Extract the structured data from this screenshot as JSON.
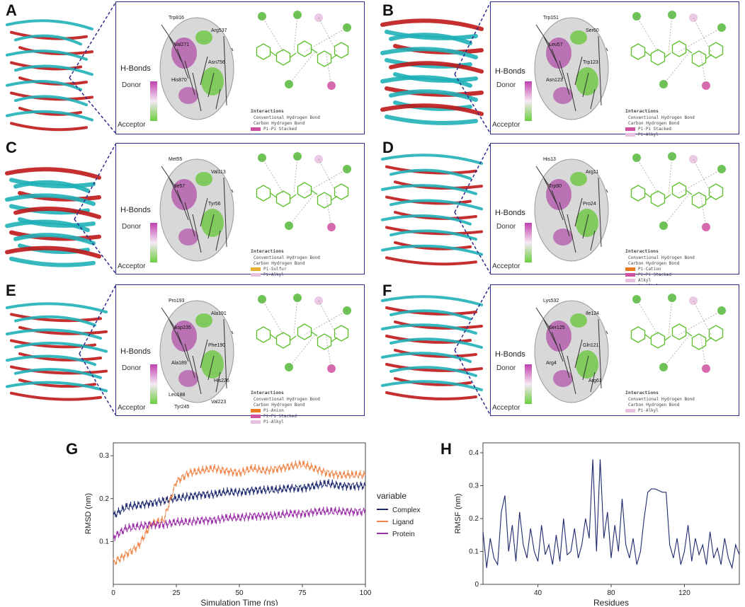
{
  "panels": [
    {
      "letter": "A",
      "hbonds_title": "H-Bonds",
      "donor": "Donor",
      "acceptor": "Acceptor",
      "interactions_title": "Interactions",
      "interactions": [
        "Conventional Hydrogen Bond",
        "Carbon Hydrogen Bond",
        "Pi-Pi Stacked"
      ],
      "residues": [
        "Trp816",
        "Arg537",
        "Val271",
        "Asn756",
        "His870"
      ]
    },
    {
      "letter": "B",
      "hbonds_title": "H-Bonds",
      "donor": "Donor",
      "acceptor": "Acceptor",
      "interactions_title": "Interactions",
      "interactions": [
        "Conventional Hydrogen Bond",
        "Carbon Hydrogen Bond",
        "Pi-Pi Stacked",
        "Pi-Alkyl"
      ],
      "residues": [
        "Trp151",
        "Ser60",
        "Leu57",
        "Trp123",
        "Asn123"
      ]
    },
    {
      "letter": "C",
      "hbonds_title": "H-Bonds",
      "donor": "Donor",
      "acceptor": "Acceptor",
      "interactions_title": "Interactions",
      "interactions": [
        "Conventional Hydrogen Bond",
        "Carbon Hydrogen Bond",
        "Pi-Sulfur",
        "Pi-Alkyl"
      ],
      "residues": [
        "Met55",
        "Val113",
        "Ile57",
        "Tyr56"
      ]
    },
    {
      "letter": "D",
      "hbonds_title": "H-Bonds",
      "donor": "Donor",
      "acceptor": "Acceptor",
      "interactions_title": "Interactions",
      "interactions": [
        "Conventional Hydrogen Bond",
        "Carbon Hydrogen Bond",
        "Pi-Cation",
        "Pi-Pi Stacked",
        "Alkyl",
        "Pi-Alkyl"
      ],
      "residues": [
        "His13",
        "Arg11",
        "Trp90",
        "Pro24"
      ]
    },
    {
      "letter": "E",
      "hbonds_title": "H-Bonds",
      "donor": "Donor",
      "acceptor": "Acceptor",
      "interactions_title": "Interactions",
      "interactions": [
        "Conventional Hydrogen Bond",
        "Carbon Hydrogen Bond",
        "Pi-Anion",
        "Pi-Pi Stacked",
        "Pi-Alkyl"
      ],
      "residues": [
        "Pro193",
        "Ala191",
        "Asp235",
        "Phe190",
        "Ala189",
        "His226",
        "Leu188",
        "Val223",
        "Tyr245"
      ]
    },
    {
      "letter": "F",
      "hbonds_title": "H-Bonds",
      "donor": "Donor",
      "acceptor": "Acceptor",
      "interactions_title": "Interactions",
      "interactions": [
        "Conventional Hydrogen Bond",
        "Carbon Hydrogen Bond",
        "Pi-Alkyl"
      ],
      "residues": [
        "Lys532",
        "Ile124",
        "Ser125",
        "Gln121",
        "Arg4",
        "Arg61"
      ]
    }
  ],
  "colors": {
    "frame": "#2c2c8a",
    "complex": "#1f2a6e",
    "ligand": "#f0864a",
    "protein": "#9b2fa8",
    "rmsf": "#1f2a6e",
    "ligand_drawing": "#5cbf2a",
    "hbond_conv": "#55b838",
    "hbond_carbon": "#d6f0cc",
    "pi_pi": "#d050a0",
    "pi_alkyl": "#e8c0e0",
    "pi_sulfur": "#e8b030",
    "pi_cation": "#e87a20"
  },
  "chart_data": [
    {
      "label": "G",
      "type": "line",
      "xlabel": "Simulation Time (ns)",
      "ylabel": "RMSD (nm)",
      "xlim": [
        0,
        100
      ],
      "ylim": [
        0,
        0.33
      ],
      "xticks": [
        0,
        25,
        50,
        75,
        100
      ],
      "yticks": [
        0.1,
        0.2,
        0.3
      ],
      "legend_title": "variable",
      "legend_position": "right-outside",
      "x": [
        0,
        5,
        10,
        15,
        20,
        25,
        30,
        35,
        40,
        45,
        50,
        55,
        60,
        65,
        70,
        75,
        80,
        85,
        90,
        95,
        100
      ],
      "series": [
        {
          "name": "Complex",
          "values": [
            0.16,
            0.18,
            0.185,
            0.19,
            0.195,
            0.2,
            0.205,
            0.21,
            0.21,
            0.215,
            0.215,
            0.22,
            0.22,
            0.22,
            0.225,
            0.225,
            0.23,
            0.235,
            0.23,
            0.23,
            0.23
          ]
        },
        {
          "name": "Ligand",
          "values": [
            0.05,
            0.07,
            0.09,
            0.14,
            0.15,
            0.24,
            0.26,
            0.265,
            0.27,
            0.265,
            0.26,
            0.27,
            0.265,
            0.27,
            0.275,
            0.28,
            0.27,
            0.26,
            0.255,
            0.255,
            0.255
          ]
        },
        {
          "name": "Protein",
          "values": [
            0.11,
            0.13,
            0.135,
            0.14,
            0.14,
            0.145,
            0.145,
            0.15,
            0.15,
            0.155,
            0.155,
            0.16,
            0.16,
            0.16,
            0.165,
            0.165,
            0.17,
            0.17,
            0.17,
            0.17,
            0.17
          ]
        }
      ]
    },
    {
      "label": "H",
      "type": "line",
      "xlabel": "Residues",
      "ylabel": "RMSF (nm)",
      "xlim": [
        10,
        150
      ],
      "ylim": [
        0,
        0.43
      ],
      "xticks": [
        40,
        80,
        120
      ],
      "yticks": [
        0,
        0.1,
        0.2,
        0.3,
        0.4
      ],
      "x": [
        10,
        12,
        14,
        16,
        18,
        20,
        22,
        24,
        26,
        28,
        30,
        32,
        34,
        36,
        38,
        40,
        42,
        44,
        46,
        48,
        50,
        52,
        54,
        56,
        58,
        60,
        62,
        64,
        66,
        68,
        70,
        72,
        74,
        76,
        78,
        80,
        82,
        84,
        86,
        88,
        90,
        92,
        94,
        96,
        98,
        100,
        102,
        104,
        106,
        108,
        110,
        112,
        114,
        116,
        118,
        120,
        122,
        124,
        126,
        128,
        130,
        132,
        134,
        136,
        138,
        140,
        142,
        144,
        146,
        148,
        150
      ],
      "series": [
        {
          "name": "",
          "values": [
            0.16,
            0.05,
            0.14,
            0.08,
            0.06,
            0.22,
            0.27,
            0.1,
            0.18,
            0.07,
            0.22,
            0.12,
            0.08,
            0.17,
            0.1,
            0.07,
            0.18,
            0.09,
            0.12,
            0.06,
            0.15,
            0.07,
            0.2,
            0.09,
            0.1,
            0.17,
            0.08,
            0.12,
            0.2,
            0.14,
            0.38,
            0.1,
            0.38,
            0.14,
            0.22,
            0.08,
            0.18,
            0.1,
            0.26,
            0.12,
            0.08,
            0.14,
            0.06,
            0.1,
            0.2,
            0.28,
            0.29,
            0.29,
            0.285,
            0.28,
            0.28,
            0.12,
            0.08,
            0.14,
            0.06,
            0.1,
            0.18,
            0.07,
            0.14,
            0.09,
            0.12,
            0.06,
            0.16,
            0.08,
            0.11,
            0.06,
            0.14,
            0.08,
            0.05,
            0.12,
            0.09
          ]
        }
      ]
    }
  ]
}
